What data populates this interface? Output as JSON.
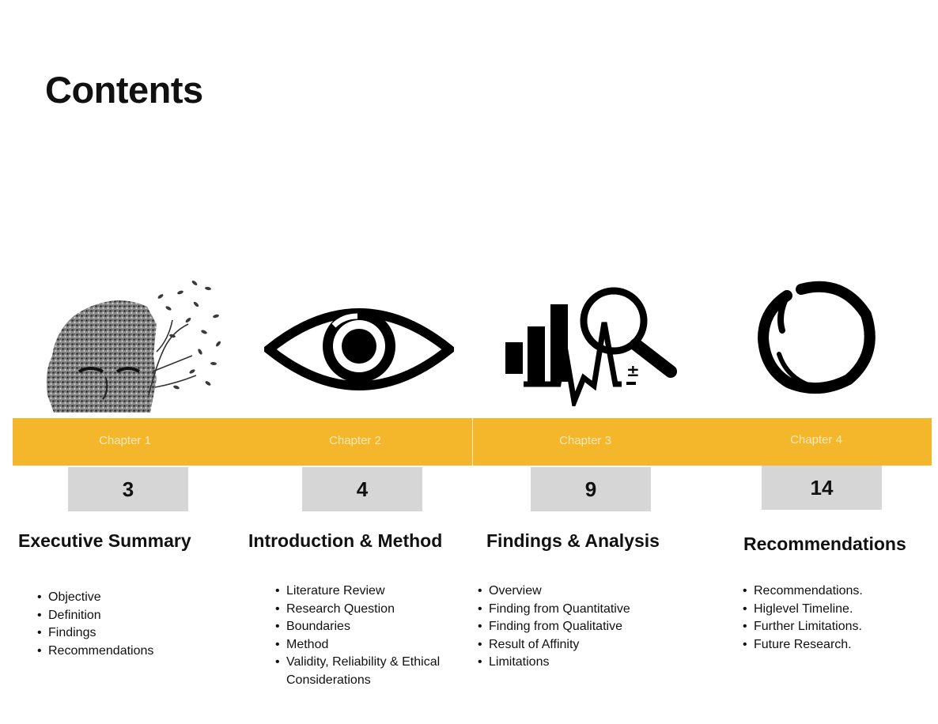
{
  "title": "Contents",
  "colors": {
    "band": "#f4b62b",
    "page_box": "#d6d6d6"
  },
  "chapters": [
    {
      "label": "Chapter 1",
      "page": "3",
      "heading": "Executive Summary",
      "icon": "dispersing-head-icon",
      "items": [
        "Objective",
        "Definition",
        "Findings",
        "Recommendations"
      ]
    },
    {
      "label": "Chapter 2",
      "page": "4",
      "heading": "Introduction & Method",
      "icon": "eye-icon",
      "items": [
        "Literature Review",
        "Research Question",
        "Boundaries",
        "Method",
        "Validity, Reliability & Ethical Considerations"
      ]
    },
    {
      "label": "Chapter 3",
      "page": "9",
      "heading": "Findings & Analysis",
      "icon": "analysis-magnifier-icon",
      "items": [
        "Overview",
        "Finding from Quantitative",
        "Finding from Qualitative",
        "Result of Affinity",
        "Limitations"
      ]
    },
    {
      "label": "Chapter 4",
      "page": "14",
      "heading": "Recommendations",
      "icon": "enso-circle-icon",
      "items": [
        "Recommendations.",
        "Higlevel Timeline.",
        "Further Limitations.",
        "Future Research."
      ]
    }
  ]
}
